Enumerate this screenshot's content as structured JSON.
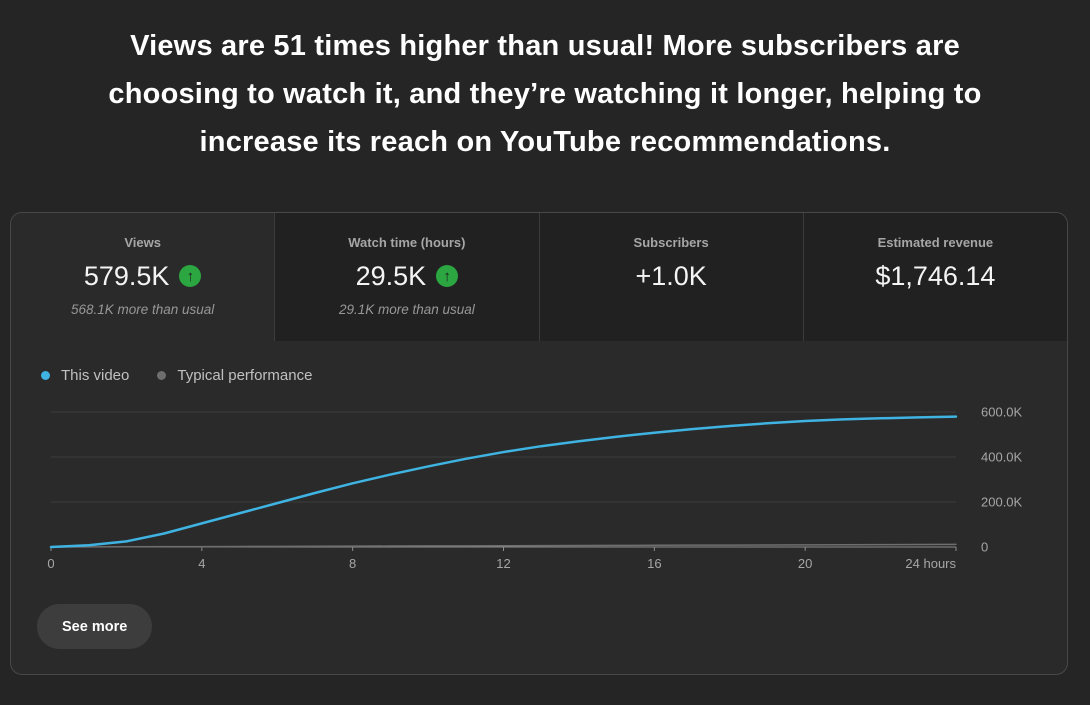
{
  "headline": "Views are 51 times higher than usual! More subscribers are choosing to watch it, and they’re watching it longer, helping to increase its reach on YouTube recommendations.",
  "metrics": [
    {
      "label": "Views",
      "value": "579.5K",
      "trend": "up",
      "subtext": "568.1K more than usual",
      "selected": true
    },
    {
      "label": "Watch time (hours)",
      "value": "29.5K",
      "trend": "up",
      "subtext": "29.1K more than usual",
      "selected": false
    },
    {
      "label": "Subscribers",
      "value": "+1.0K",
      "trend": null,
      "subtext": "",
      "selected": false
    },
    {
      "label": "Estimated revenue",
      "value": "$1,746.14",
      "trend": null,
      "subtext": "",
      "selected": false
    }
  ],
  "legend": [
    {
      "label": "This video",
      "color": "#3fb3e2"
    },
    {
      "label": "Typical performance",
      "color": "#6e6e6e"
    }
  ],
  "see_more_label": "See more",
  "trend_icon_glyph": "↑",
  "colors": {
    "page_bg": "#252525",
    "card_bg": "#2a2a2a",
    "unselected_tab_bg": "#212121",
    "positive_green": "#2ba640",
    "line_blue": "#3fb3e2",
    "typical_gray": "#6e6e6e",
    "gridline": "#3c3c3c",
    "axis": "#8c8c8c",
    "axis_label": "#a6a6a6"
  },
  "chart_data": {
    "type": "line",
    "title": "Views over first 24 hours vs typical performance",
    "x": [
      0,
      1,
      2,
      3,
      4,
      5,
      6,
      7,
      8,
      9,
      10,
      11,
      12,
      13,
      14,
      15,
      16,
      17,
      18,
      19,
      20,
      21,
      22,
      23,
      24
    ],
    "series": [
      {
        "name": "This video",
        "color": "#3fb3e2",
        "values": [
          0,
          8000,
          25000,
          60000,
          105000,
          150000,
          195000,
          240000,
          283000,
          322000,
          358000,
          392000,
          422000,
          448000,
          470000,
          490000,
          508000,
          524000,
          538000,
          550000,
          560000,
          567000,
          572000,
          576000,
          579500
        ]
      },
      {
        "name": "Typical performance",
        "color": "#6e6e6e",
        "values": [
          0,
          475,
          950,
          1425,
          1900,
          2375,
          2850,
          3325,
          3800,
          4275,
          4750,
          5225,
          5700,
          6175,
          6650,
          7125,
          7600,
          8075,
          8550,
          9025,
          9500,
          9975,
          10450,
          10925,
          11400
        ]
      }
    ],
    "xlim": [
      0,
      24
    ],
    "ylim": [
      0,
      650000
    ],
    "x_ticks": [
      0,
      4,
      8,
      12,
      16,
      20,
      24
    ],
    "x_tick_labels": [
      "0",
      "4",
      "8",
      "12",
      "16",
      "20",
      "24 hours"
    ],
    "y_ticks": [
      0,
      200000,
      400000,
      600000
    ],
    "y_tick_labels": [
      "0",
      "200.0K",
      "400.0K",
      "600.0K"
    ],
    "grid": true,
    "legend_position": "top-left"
  }
}
